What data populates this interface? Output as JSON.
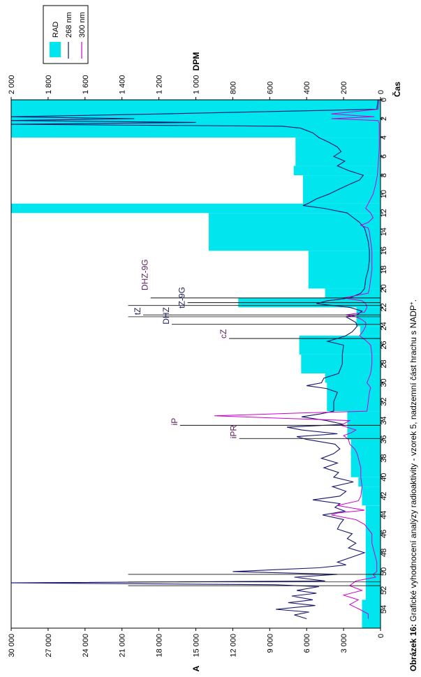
{
  "chart_data": {
    "type": "line",
    "orientation": "rotated-90",
    "caption": {
      "label": "Obrázek 16:",
      "text": " Grafické vyhodnocení analýzy radioaktivity - vzorek 5, nadzemní část hrachu s NADP"
    },
    "x_axis": {
      "label": "Čas",
      "range": [
        0,
        56
      ],
      "ticks": [
        0,
        2,
        4,
        6,
        8,
        10,
        12,
        14,
        16,
        18,
        20,
        22,
        24,
        26,
        28,
        30,
        32,
        34,
        36,
        38,
        40,
        42,
        44,
        46,
        48,
        50,
        52,
        54
      ]
    },
    "y_left": {
      "label": "A",
      "range": [
        0,
        30000
      ],
      "ticks": [
        0,
        3000,
        6000,
        9000,
        12000,
        15000,
        18000,
        21000,
        24000,
        27000,
        30000
      ],
      "tick_labels": [
        "0",
        "3 000",
        "6 000",
        "9 000",
        "12 000",
        "15 000",
        "18 000",
        "21 000",
        "24 000",
        "27 000",
        "30 000"
      ]
    },
    "y_right": {
      "label": "DPM",
      "range": [
        0,
        2000
      ],
      "ticks": [
        0,
        200,
        400,
        600,
        800,
        1000,
        1200,
        1400,
        1600,
        1800,
        2000
      ],
      "tick_labels": [
        "0",
        "200",
        "400",
        "600",
        "800",
        "1 000",
        "1 200",
        "1 400",
        "1 600",
        "1 800",
        "2 000"
      ]
    },
    "legend": {
      "placement": "top-right",
      "entries": [
        "RAD",
        "268 nm",
        "300 nm"
      ]
    },
    "colors": {
      "rad": "#00e5ee",
      "nm268": "#14146e",
      "nm300": "#d000d0"
    },
    "rad_bars": [
      {
        "x0": 0,
        "x1": 4,
        "dpm": 2000
      },
      {
        "x0": 4,
        "x1": 7,
        "dpm": 460
      },
      {
        "x0": 7,
        "x1": 8,
        "dpm": 470
      },
      {
        "x0": 8,
        "x1": 11,
        "dpm": 420
      },
      {
        "x0": 11,
        "x1": 12,
        "dpm": 2000
      },
      {
        "x0": 12,
        "x1": 16,
        "dpm": 930
      },
      {
        "x0": 16,
        "x1": 20,
        "dpm": 390
      },
      {
        "x0": 20,
        "x1": 21,
        "dpm": 300
      },
      {
        "x0": 21,
        "x1": 22,
        "dpm": 770
      },
      {
        "x0": 22,
        "x1": 24,
        "dpm": 130
      },
      {
        "x0": 24,
        "x1": 25,
        "dpm": 110
      },
      {
        "x0": 25,
        "x1": 27,
        "dpm": 440
      },
      {
        "x0": 27,
        "x1": 29,
        "dpm": 430
      },
      {
        "x0": 29,
        "x1": 30,
        "dpm": 300
      },
      {
        "x0": 30,
        "x1": 33,
        "dpm": 290
      },
      {
        "x0": 33,
        "x1": 36,
        "dpm": 180
      },
      {
        "x0": 36,
        "x1": 40,
        "dpm": 160
      },
      {
        "x0": 40,
        "x1": 41,
        "dpm": 120
      },
      {
        "x0": 41,
        "x1": 43,
        "dpm": 100
      },
      {
        "x0": 43,
        "x1": 53,
        "dpm": 80
      },
      {
        "x0": 53,
        "x1": 56,
        "dpm": 100
      }
    ],
    "series": [
      {
        "name": "268 nm",
        "x": [
          0,
          1,
          1.5,
          1.8,
          2.0,
          2.2,
          2.4,
          2.6,
          2.8,
          3.0,
          3.5,
          4.0,
          4.5,
          5.0,
          5.5,
          6.0,
          6.5,
          7.0,
          7.5,
          8.0,
          8.5,
          9.0,
          9.5,
          10.0,
          10.5,
          11.0,
          11.2,
          11.5,
          12.0,
          12.5,
          13.0,
          13.3,
          13.6,
          14.0,
          14.5,
          15.0,
          16.0,
          17.0,
          18.0,
          19.0,
          20.0,
          20.5,
          21.0,
          21.3,
          21.6,
          22.0,
          22.4,
          22.8,
          23.0,
          23.3,
          23.6,
          24.0,
          24.3,
          24.6,
          25.0,
          25.3,
          25.6,
          26.0,
          27.0,
          28.0,
          29.0,
          29.5,
          30.0,
          30.3,
          30.6,
          31.0,
          32.0,
          33.0,
          33.3,
          33.6,
          34.0,
          34.4,
          34.7,
          35.0,
          35.4,
          35.7,
          36.0,
          36.5,
          37.0,
          37.5,
          38.0,
          38.5,
          39.0,
          39.5,
          40.0,
          40.5,
          41.0,
          41.5,
          42.0,
          42.4,
          42.8,
          43.2,
          43.6,
          44.0,
          44.5,
          45.0,
          45.5,
          46.0,
          46.5,
          47.0,
          47.5,
          48.0,
          48.5,
          49.0,
          49.3,
          49.6,
          50.0,
          50.3,
          50.6,
          51.0,
          51.2,
          51.4,
          51.6,
          52.0,
          52.3,
          52.6,
          53.0,
          53.3,
          53.6,
          54.0,
          54.3,
          54.6,
          55.0
        ],
        "y": [
          200,
          300,
          18000,
          30000,
          20000,
          30000,
          15000,
          30000,
          8000,
          6500,
          5500,
          5000,
          4200,
          3500,
          3200,
          3800,
          2900,
          3500,
          2600,
          1400,
          1700,
          2600,
          3400,
          4200,
          5200,
          5900,
          6300,
          4600,
          2700,
          2200,
          1700,
          1500,
          1300,
          1200,
          1100,
          1000,
          900,
          900,
          1000,
          1200,
          1300,
          1600,
          2500,
          4300,
          5200,
          2500,
          1500,
          1900,
          2800,
          2400,
          2000,
          1900,
          2100,
          2300,
          2800,
          3500,
          4300,
          3000,
          3100,
          3100,
          3400,
          4600,
          4800,
          6000,
          4400,
          3500,
          3800,
          3800,
          4900,
          6400,
          4400,
          3000,
          7600,
          6400,
          3500,
          6800,
          6000,
          3700,
          3300,
          3800,
          4800,
          3500,
          4600,
          3400,
          3800,
          2200,
          3900,
          2800,
          3300,
          5500,
          3300,
          3700,
          2900,
          4700,
          3000,
          3300,
          3500,
          2300,
          2700,
          2000,
          2600,
          1300,
          2400,
          3500,
          2800,
          5000,
          12000,
          3500,
          7000,
          4500,
          30000,
          8500,
          5000,
          6800,
          5200,
          7200,
          5500,
          7500,
          5300,
          8500,
          5800,
          7000,
          6000
        ]
      },
      {
        "name": "300 nm",
        "x": [
          0,
          1,
          1.5,
          1.8,
          2.0,
          2.2,
          2.5,
          3.0,
          3.5,
          4.0,
          5,
          6,
          7,
          8,
          9,
          10,
          10.5,
          11,
          11.5,
          12,
          12.5,
          13,
          13.3,
          13.6,
          14,
          15,
          16,
          17,
          18,
          19,
          20,
          20.5,
          21,
          21.3,
          21.6,
          22,
          22.5,
          22.8,
          23,
          23.3,
          23.6,
          24,
          24.5,
          25,
          25.5,
          26,
          27,
          28,
          29,
          30,
          30.5,
          31,
          32,
          33,
          33.2,
          33.5,
          33.8,
          34,
          34.5,
          35,
          35.3,
          35.6,
          36,
          36.5,
          37,
          37.5,
          38,
          39,
          40,
          41,
          42,
          42.5,
          43,
          43.5,
          43.8,
          44,
          44.5,
          45,
          45.5,
          46,
          47,
          48,
          49,
          50,
          50.3,
          50.6,
          51,
          51.5,
          52,
          52.5,
          53,
          53.5,
          54,
          54.5,
          55
        ],
        "y": [
          100,
          200,
          4000,
          500,
          4000,
          200,
          100,
          100,
          100,
          100,
          100,
          150,
          200,
          250,
          400,
          600,
          800,
          1000,
          1200,
          800,
          600,
          1000,
          1600,
          1000,
          900,
          800,
          700,
          700,
          700,
          800,
          900,
          1000,
          3000,
          1500,
          1200,
          1100,
          1300,
          2800,
          2000,
          1500,
          1200,
          1200,
          1400,
          1700,
          1200,
          800,
          700,
          700,
          800,
          1100,
          800,
          900,
          1000,
          1100,
          6500,
          13500,
          7000,
          2500,
          3200,
          2000,
          2400,
          3000,
          2600,
          2500,
          2100,
          1900,
          1800,
          1600,
          1600,
          1500,
          1600,
          1800,
          3500,
          1300,
          3500,
          4000,
          2000,
          1300,
          1000,
          700,
          700,
          500,
          300,
          300,
          600,
          400,
          2000,
          2500,
          1500,
          3000,
          1800,
          2500,
          1700,
          1000,
          1000
        ]
      }
    ],
    "peak_markers": [
      {
        "label": "DHZ-9G",
        "x": 21.0,
        "dpm": 1245,
        "label_offset_time": -0.8
      },
      {
        "label": "tZ-9G",
        "x": 21.5,
        "dpm": 1045,
        "label_offset_time": 0.6
      },
      {
        "label": "DHZ",
        "x": 23.8,
        "dpm": 1130,
        "label_offset_time": 0.0
      },
      {
        "label": "tZ",
        "x": 22.8,
        "dpm": 1285,
        "label_offset_time": 0.0
      },
      {
        "label": "cZ",
        "x": 25.3,
        "dpm": 820,
        "label_offset_time": 0.0
      },
      {
        "label": "iP",
        "x": 34.5,
        "dpm": 1085,
        "label_offset_time": 0.0
      },
      {
        "label": "iPR",
        "x": 35.9,
        "dpm": 765,
        "label_offset_time": 0.0
      }
    ],
    "marker_colors": {
      "DHZ-9G": "#5a1e5a",
      "tZ-9G": "#1e1e5a",
      "DHZ": "#1e1e5a",
      "tZ": "#1e1e5a",
      "cZ": "#5a1e5a",
      "iP": "#5a1e5a",
      "iPR": "#5a1e5a"
    },
    "extra_vlines": [
      21.8,
      23.0,
      51.1,
      51.5,
      50.3
    ]
  }
}
